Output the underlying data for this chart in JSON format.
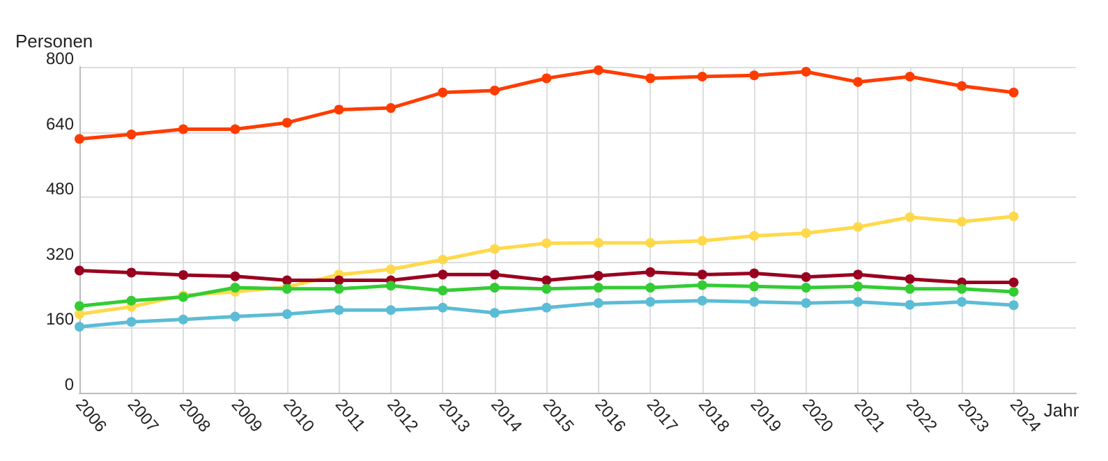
{
  "chart_data": {
    "type": "line",
    "ylabel": "Personen",
    "xlabel": "Jahr",
    "x": [
      2006,
      2007,
      2008,
      2009,
      2010,
      2011,
      2012,
      2013,
      2014,
      2015,
      2016,
      2017,
      2018,
      2019,
      2020,
      2021,
      2022,
      2023,
      2024
    ],
    "series": [
      {
        "color": "#ff3c00",
        "values": [
          623,
          634,
          647,
          647,
          663,
          695,
          699,
          737,
          742,
          772,
          792,
          772,
          776,
          779,
          788,
          763,
          776,
          753,
          737
        ]
      },
      {
        "color": "#ffd94a",
        "values": [
          193,
          211,
          239,
          248,
          260,
          290,
          303,
          327,
          353,
          367,
          368,
          368,
          373,
          385,
          392,
          407,
          431,
          420,
          433
        ]
      },
      {
        "color": "#990020",
        "values": [
          300,
          295,
          289,
          286,
          276,
          276,
          276,
          290,
          290,
          276,
          287,
          296,
          290,
          293,
          284,
          290,
          279,
          271,
          271
        ]
      },
      {
        "color": "#33cc33",
        "values": [
          213,
          226,
          235,
          258,
          255,
          255,
          263,
          251,
          258,
          255,
          258,
          258,
          264,
          261,
          258,
          261,
          255,
          255,
          248
        ]
      },
      {
        "color": "#5bbcd6",
        "values": [
          162,
          174,
          180,
          187,
          193,
          203,
          203,
          209,
          196,
          209,
          220,
          223,
          226,
          223,
          220,
          223,
          216,
          223,
          215
        ]
      }
    ],
    "xlim": [
      2006,
      2025.2
    ],
    "xticks": [
      2006,
      2007,
      2008,
      2009,
      2010,
      2011,
      2012,
      2013,
      2014,
      2015,
      2016,
      2017,
      2018,
      2019,
      2020,
      2021,
      2022,
      2023,
      2024
    ],
    "ylim": [
      0,
      800
    ],
    "yticks": [
      0,
      160,
      320,
      480,
      640,
      800
    ],
    "grid": true,
    "marker": "circle",
    "line_style": "solid"
  }
}
